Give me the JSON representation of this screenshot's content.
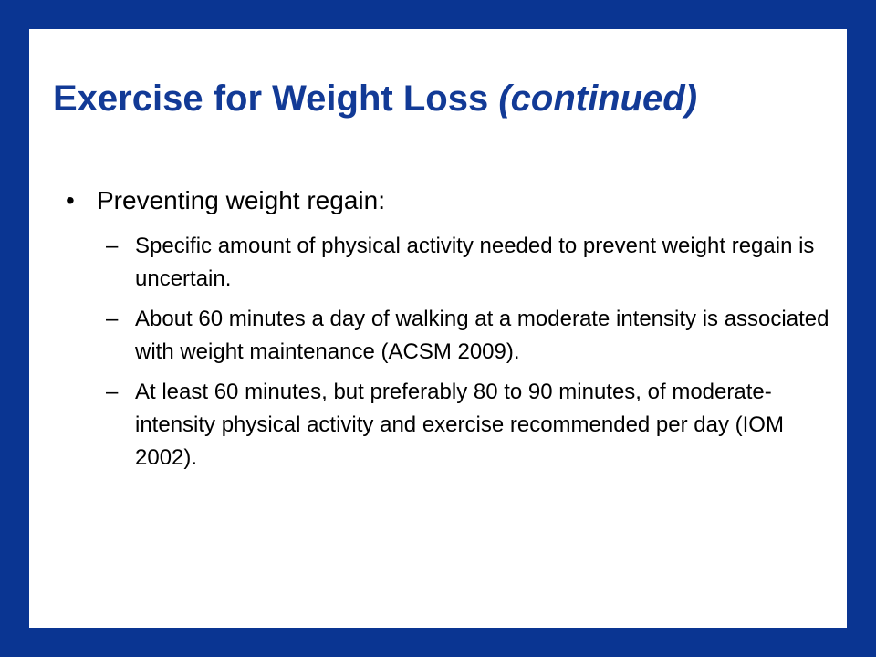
{
  "slide": {
    "title": "Exercise for Weight Loss",
    "title_italic": "(continued)",
    "colors": {
      "frame": "#0a3592",
      "background": "#ffffff",
      "title": "#123a96",
      "body_text": "#000000"
    },
    "bullet": {
      "marker": "•",
      "text": "Preventing weight regain:",
      "sub_marker": "–",
      "sub_items": [
        "Specific amount of physical activity needed to prevent weight regain is uncertain.",
        "About 60 minutes a day of walking at a moderate intensity is associated with weight maintenance (ACSM 2009).",
        "At least 60 minutes, but preferably 80 to 90 minutes, of moderate-intensity physical activity and exercise recommended per day (IOM 2002)."
      ]
    }
  }
}
